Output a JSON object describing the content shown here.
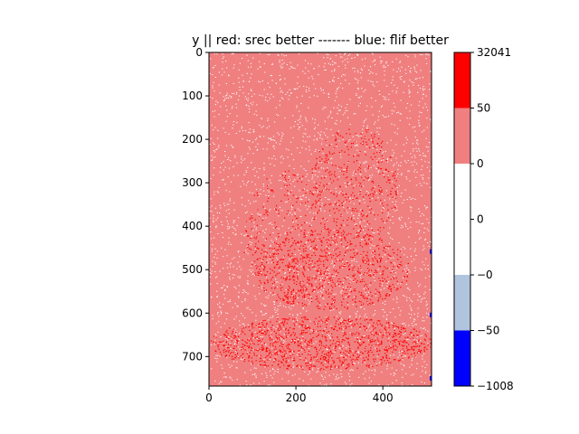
{
  "chart_data": {
    "type": "heatmap",
    "title": "y || red: srec better ------- blue: flif better",
    "xlabel": "",
    "ylabel": "",
    "xlim": [
      0,
      512
    ],
    "ylim": [
      768,
      0
    ],
    "x_ticks": [
      "0",
      "200",
      "400"
    ],
    "x_tick_values": [
      0,
      200,
      400
    ],
    "y_ticks": [
      "0",
      "100",
      "200",
      "300",
      "400",
      "500",
      "600",
      "700"
    ],
    "y_tick_values": [
      0,
      100,
      200,
      300,
      400,
      500,
      600,
      700
    ],
    "colorbar": {
      "tick_labels": [
        "32041",
        "50",
        "0",
        "0",
        "−0",
        "−50",
        "−1008"
      ],
      "bins": [
        {
          "range": "50 to 32041",
          "color": "#ff0000"
        },
        {
          "range": "0 to 50",
          "color": "#f08080"
        },
        {
          "range": "0 to 0",
          "color": "#ffffff"
        },
        {
          "range": "-0 to 0",
          "color": "#ffffff"
        },
        {
          "range": "-50 to -0",
          "color": "#b0c4de"
        },
        {
          "range": "-1008 to -50",
          "color": "#0000ff"
        }
      ]
    },
    "image_colors": {
      "dominant": "#f08080",
      "strong_positive": "#ff0000",
      "zero": "#ffffff",
      "negative": "#0000ff"
    }
  }
}
